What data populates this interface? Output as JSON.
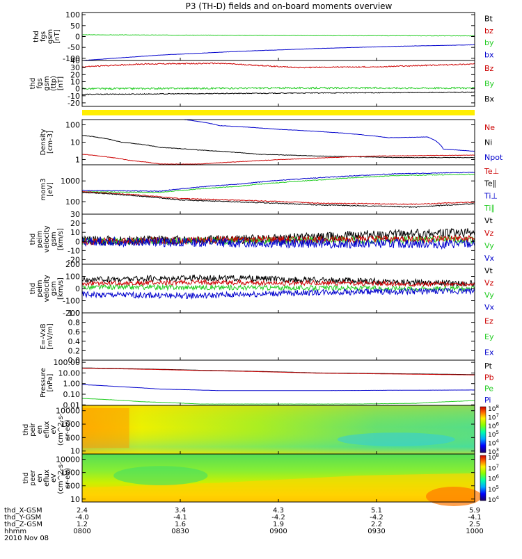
{
  "title": "P3 (TH-D) fields and on-board moments overview",
  "colors": {
    "black": "#000000",
    "red": "#cc0000",
    "green": "#22cc22",
    "blue": "#0000cc",
    "yellow": "#ffee00"
  },
  "chart_data": [
    {
      "type": "line",
      "id": "p1",
      "ylabel": [
        "thd",
        "fgs",
        "gsm",
        "[nT]"
      ],
      "ylim": [
        -110,
        110
      ],
      "yticks": [
        100,
        50,
        0,
        -50,
        -100
      ],
      "legend": [
        {
          "label": "Bt",
          "color": "black"
        },
        {
          "label": "bz",
          "color": "red"
        },
        {
          "label": "by",
          "color": "green"
        },
        {
          "label": "bx",
          "color": "blue"
        }
      ],
      "series": [
        {
          "name": "by",
          "color": "green",
          "x": [
            0,
            0.3,
            0.6,
            1
          ],
          "y": [
            8,
            6,
            4,
            3
          ],
          "noise": 1
        },
        {
          "name": "bx",
          "color": "blue",
          "x": [
            0,
            0.2,
            0.4,
            0.6,
            0.8,
            1
          ],
          "y": [
            -110,
            -85,
            -68,
            -55,
            -45,
            -38
          ],
          "noise": 0.5
        }
      ]
    },
    {
      "type": "line",
      "id": "p2",
      "ylabel": [
        "thd",
        "fgs",
        "gsm",
        "(ttp)",
        "[nT]"
      ],
      "ylim": [
        -25,
        40
      ],
      "yticks": [
        40,
        30,
        20,
        10,
        0,
        -10,
        -20
      ],
      "legend": [
        {
          "label": "Bz",
          "color": "red"
        },
        {
          "label": "By",
          "color": "green"
        },
        {
          "label": "Bx",
          "color": "black"
        }
      ],
      "series": [
        {
          "name": "Bz",
          "color": "red",
          "x": [
            0,
            0.15,
            0.35,
            0.55,
            0.75,
            1
          ],
          "y": [
            31,
            35,
            36,
            30,
            31,
            35
          ],
          "noise": 0.8
        },
        {
          "name": "By",
          "color": "green",
          "x": [
            0,
            0.5,
            1
          ],
          "y": [
            0,
            1,
            1
          ],
          "noise": 1.2
        },
        {
          "name": "Bx",
          "color": "black",
          "x": [
            0,
            0.3,
            0.6,
            1
          ],
          "y": [
            -8,
            -7,
            -6,
            -5
          ],
          "noise": 0.6
        }
      ]
    },
    {
      "type": "line",
      "id": "p3",
      "scale": "log",
      "ylabel": [
        "Density",
        "[cm-3]"
      ],
      "ylim": [
        0.5,
        200
      ],
      "yticks": [
        100,
        10,
        1
      ],
      "yticklabels": [
        "100",
        "10",
        "1"
      ],
      "legend": [
        {
          "label": "Ne",
          "color": "red"
        },
        {
          "label": "Ni",
          "color": "black"
        },
        {
          "label": "Npot",
          "color": "blue"
        }
      ],
      "series": [
        {
          "name": "Npot",
          "color": "blue",
          "x": [
            0.26,
            0.35,
            0.5,
            0.65,
            0.78,
            0.88,
            0.92,
            1
          ],
          "y": [
            200,
            90,
            55,
            35,
            18,
            20,
            4,
            3
          ],
          "noise": 0.02
        },
        {
          "name": "Ni",
          "color": "black",
          "x": [
            0,
            0.1,
            0.2,
            0.3,
            0.45,
            0.6,
            0.8,
            1
          ],
          "y": [
            25,
            10,
            5,
            3.5,
            2,
            1.6,
            1.3,
            1.3
          ],
          "noise": 0.03
        },
        {
          "name": "Ne",
          "color": "red",
          "x": [
            0,
            0.12,
            0.2,
            0.3,
            0.4,
            0.55,
            0.75,
            1
          ],
          "y": [
            2,
            0.9,
            0.55,
            0.55,
            0.75,
            1.1,
            1.6,
            1.8
          ],
          "noise": 0.03
        }
      ]
    },
    {
      "type": "line",
      "id": "p4",
      "scale": "log",
      "ylabel": [
        "mom3",
        "[eV]"
      ],
      "ylim": [
        25,
        6000
      ],
      "yticks": [
        1000,
        100
      ],
      "yticklabels": [
        "1000",
        "100"
      ],
      "legend": [
        {
          "label": "Te⊥",
          "color": "red"
        },
        {
          "label": "Te∥",
          "color": "black"
        },
        {
          "label": "Ti⊥",
          "color": "blue"
        },
        {
          "label": "Ti∥",
          "color": "green"
        }
      ],
      "series": [
        {
          "name": "Ti⊥",
          "color": "blue",
          "x": [
            0,
            0.2,
            0.4,
            0.6,
            0.8,
            1
          ],
          "y": [
            350,
            320,
            700,
            1400,
            2200,
            2600
          ],
          "noise": 0.04
        },
        {
          "name": "Ti∥",
          "color": "green",
          "x": [
            0,
            0.2,
            0.4,
            0.6,
            0.8,
            1
          ],
          "y": [
            300,
            280,
            550,
            1100,
            1800,
            2100
          ],
          "noise": 0.04
        },
        {
          "name": "Te⊥",
          "color": "red",
          "x": [
            0,
            0.25,
            0.45,
            0.6,
            0.85,
            1
          ],
          "y": [
            300,
            140,
            110,
            85,
            75,
            95
          ],
          "noise": 0.05
        },
        {
          "name": "Te∥",
          "color": "black",
          "x": [
            0,
            0.25,
            0.45,
            0.6,
            0.85,
            1
          ],
          "y": [
            280,
            120,
            90,
            70,
            55,
            80
          ],
          "noise": 0.05
        }
      ]
    },
    {
      "type": "line",
      "id": "p5",
      "ylabel": [
        "thd",
        "peim",
        "velocity",
        "gsm",
        "[km/s]"
      ],
      "ylim": [
        -25,
        30
      ],
      "yticks": [
        30,
        20,
        10,
        0,
        -10,
        -20
      ],
      "legend": [
        {
          "label": "Vt",
          "color": "black"
        },
        {
          "label": "Vz",
          "color": "red"
        },
        {
          "label": "Vy",
          "color": "green"
        },
        {
          "label": "Vx",
          "color": "blue"
        }
      ],
      "series": [
        {
          "name": "Vt",
          "color": "black",
          "x": [
            0,
            0.4,
            0.7,
            1
          ],
          "y": [
            1,
            2,
            7,
            10
          ],
          "noise": 5
        },
        {
          "name": "Vy",
          "color": "green",
          "x": [
            0,
            0.5,
            1
          ],
          "y": [
            0,
            1,
            2
          ],
          "noise": 4
        },
        {
          "name": "Vz",
          "color": "red",
          "x": [
            0,
            0.5,
            1
          ],
          "y": [
            0,
            2,
            3
          ],
          "noise": 4
        },
        {
          "name": "Vx",
          "color": "blue",
          "x": [
            0,
            0.5,
            1
          ],
          "y": [
            0,
            -2,
            -3
          ],
          "noise": 5
        }
      ]
    },
    {
      "type": "line",
      "id": "p6",
      "ylabel": [
        "thd",
        "peim",
        "velocity",
        "gsm",
        "[km/s]"
      ],
      "ylim": [
        -200,
        200
      ],
      "yticks": [
        200,
        100,
        0,
        -100,
        -200
      ],
      "legend": [
        {
          "label": "Vt",
          "color": "black"
        },
        {
          "label": "Vz",
          "color": "red"
        },
        {
          "label": "Vy",
          "color": "green"
        },
        {
          "label": "Vx",
          "color": "blue"
        }
      ],
      "series": [
        {
          "name": "Vt",
          "color": "black",
          "x": [
            0,
            0.3,
            0.6,
            1
          ],
          "y": [
            70,
            90,
            70,
            40
          ],
          "noise": 25
        },
        {
          "name": "Vz",
          "color": "red",
          "x": [
            0,
            0.3,
            0.6,
            1
          ],
          "y": [
            40,
            50,
            45,
            35
          ],
          "noise": 20
        },
        {
          "name": "Vy",
          "color": "green",
          "x": [
            0,
            0.3,
            0.6,
            1
          ],
          "y": [
            10,
            10,
            5,
            0
          ],
          "noise": 20
        },
        {
          "name": "Vx",
          "color": "blue",
          "x": [
            0,
            0.3,
            0.6,
            1
          ],
          "y": [
            -50,
            -60,
            -30,
            -20
          ],
          "noise": 25
        }
      ]
    },
    {
      "type": "line",
      "id": "p7",
      "ylabel": [
        "E=-VxB",
        "[mV/m]"
      ],
      "ylim": [
        0,
        1
      ],
      "yticks": [
        1,
        0.8,
        0.6,
        0.4,
        0.2,
        0
      ],
      "yticklabels": [
        "1.0",
        "0.8",
        "0.6",
        "0.4",
        "0.2",
        "0.0"
      ],
      "legend": [
        {
          "label": "Ez",
          "color": "red"
        },
        {
          "label": "Ey",
          "color": "green"
        },
        {
          "label": "Ex",
          "color": "blue"
        }
      ],
      "series": []
    },
    {
      "type": "line",
      "id": "p8",
      "scale": "log",
      "ylabel": [
        "Pressure",
        "[nPa]"
      ],
      "ylim": [
        0.009,
        160
      ],
      "yticks": [
        100,
        10,
        1,
        0.1,
        0.01
      ],
      "yticklabels": [
        "100.00",
        "10.00",
        "1.00",
        "0.10",
        "0.01"
      ],
      "legend": [
        {
          "label": "Pt",
          "color": "black"
        },
        {
          "label": "Pb",
          "color": "red"
        },
        {
          "label": "Pe",
          "color": "green"
        },
        {
          "label": "Pi",
          "color": "blue"
        }
      ],
      "series": [
        {
          "name": "Pt",
          "color": "black",
          "x": [
            0,
            0.3,
            0.6,
            1
          ],
          "y": [
            30,
            18,
            10,
            7
          ],
          "noise": 0.005
        },
        {
          "name": "Pb",
          "color": "red",
          "x": [
            0,
            0.3,
            0.6,
            1
          ],
          "y": [
            28,
            17,
            9.5,
            6.5
          ],
          "noise": 0.005
        },
        {
          "name": "Pi",
          "color": "blue",
          "x": [
            0,
            0.1,
            0.2,
            0.35,
            0.6,
            1
          ],
          "y": [
            0.8,
            0.5,
            0.3,
            0.22,
            0.22,
            0.25
          ],
          "noise": 0.01
        },
        {
          "name": "Pe",
          "color": "green",
          "x": [
            0,
            0.15,
            0.3,
            0.7,
            0.85,
            1
          ],
          "y": [
            0.04,
            0.02,
            0.012,
            0.012,
            0.014,
            0.025
          ],
          "noise": 0.02
        }
      ]
    },
    {
      "type": "heatmap",
      "id": "p9",
      "scale": "log",
      "ylabel": [
        "thd",
        "peir",
        "en",
        "eflux",
        "eV",
        "(cm^2-s-",
        "sr-eV)"
      ],
      "ylim": [
        6,
        25000
      ],
      "yticks": [
        10000,
        1000,
        100,
        10
      ],
      "yticklabels": [
        "10000",
        "1000",
        "100",
        "10"
      ],
      "colorbar": {
        "range": [
          1000,
          100000000
        ],
        "ticks": [
          "10^3",
          "10^4",
          "10^5",
          "10^6",
          "10^7",
          "10^8"
        ]
      }
    },
    {
      "type": "heatmap",
      "id": "p10",
      "scale": "log",
      "ylabel": [
        "thd",
        "peer",
        "en",
        "eflux",
        "eV",
        "(cm^2-s-",
        "sr-eV)"
      ],
      "ylim": [
        6,
        25000
      ],
      "yticks": [
        10000,
        1000,
        100,
        10
      ],
      "yticklabels": [
        "10000",
        "1000",
        "100",
        "10"
      ],
      "colorbar": {
        "range": [
          3000,
          100000000
        ],
        "ticks": [
          "10^4",
          "10^5",
          "10^6",
          "10^7",
          "10^8"
        ]
      }
    }
  ],
  "xaxis": {
    "rows": [
      {
        "label": "thd_X-GSM",
        "values": [
          "2.4",
          "3.4",
          "4.3",
          "5.1",
          "5.9"
        ]
      },
      {
        "label": "thd_Y-GSM",
        "values": [
          "-4.0",
          "-4.1",
          "-4.2",
          "-4.2",
          "-4.1"
        ]
      },
      {
        "label": "thd_Z-GSM",
        "values": [
          "1.2",
          "1.6",
          "1.9",
          "2.2",
          "2.5"
        ]
      },
      {
        "label": "hhmm",
        "values": [
          "0800",
          "0830",
          "0900",
          "0930",
          "1000"
        ]
      }
    ],
    "date": "2010 Nov 08"
  }
}
